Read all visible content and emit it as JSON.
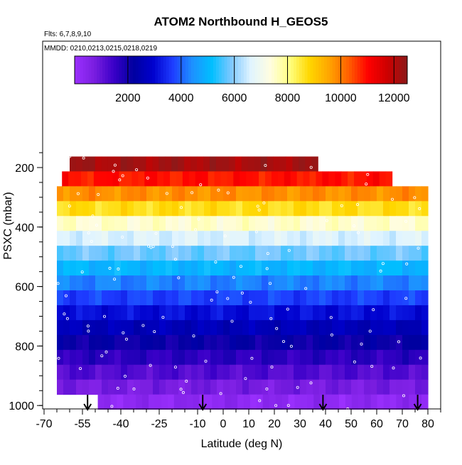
{
  "chart_data": {
    "type": "heatmap",
    "title": "ATOM2 Northbound H_GEOS5",
    "subtitle_flights": "Flts: 6,7,8,9,10",
    "subtitle_dates": "MMDD: 0210,0213,0215,0218,0219",
    "xlabel": "Latitude (deg N)",
    "ylabel": "PSXC (mbar)",
    "xlim": [
      -65,
      82
    ],
    "ylim": [
      1000,
      100
    ],
    "x_ticks": [
      -70,
      -55,
      -40,
      -25,
      -10,
      0,
      10,
      20,
      30,
      40,
      50,
      60,
      70,
      80
    ],
    "y_ticks": [
      200,
      400,
      600,
      800,
      1000
    ],
    "colorbar": {
      "range": [
        0,
        12500
      ],
      "ticks": [
        2000,
        4000,
        6000,
        8000,
        10000,
        12000
      ],
      "colors": [
        "#9b30ff",
        "#7a1ee0",
        "#3a00c8",
        "#0000a0",
        "#0000cd",
        "#1e3cff",
        "#1e90ff",
        "#00bfff",
        "#7ec8ff",
        "#e0f4ff",
        "#fffde0",
        "#ffff80",
        "#ffd700",
        "#ffa500",
        "#ff6000",
        "#ff0000",
        "#cc0000",
        "#8b1a1a"
      ]
    },
    "pressure_levels": [
      {
        "pressure": 188,
        "height": 12200,
        "lat_range": [
          -60,
          37
        ]
      },
      {
        "pressure": 238,
        "height": 10900,
        "lat_range": [
          -63,
          66
        ]
      },
      {
        "pressure": 288,
        "height": 9800,
        "lat_range": [
          -65,
          80
        ]
      },
      {
        "pressure": 338,
        "height": 8700,
        "lat_range": [
          -65,
          80
        ]
      },
      {
        "pressure": 388,
        "height": 7500,
        "lat_range": [
          -65,
          80
        ]
      },
      {
        "pressure": 438,
        "height": 6600,
        "lat_range": [
          -65,
          80
        ]
      },
      {
        "pressure": 488,
        "height": 5800,
        "lat_range": [
          -65,
          80
        ]
      },
      {
        "pressure": 538,
        "height": 5000,
        "lat_range": [
          -65,
          80
        ]
      },
      {
        "pressure": 588,
        "height": 4300,
        "lat_range": [
          -65,
          80
        ]
      },
      {
        "pressure": 638,
        "height": 3700,
        "lat_range": [
          -65,
          80
        ]
      },
      {
        "pressure": 688,
        "height": 3100,
        "lat_range": [
          -65,
          80
        ]
      },
      {
        "pressure": 738,
        "height": 2600,
        "lat_range": [
          -65,
          80
        ]
      },
      {
        "pressure": 788,
        "height": 2100,
        "lat_range": [
          -65,
          80
        ]
      },
      {
        "pressure": 838,
        "height": 1650,
        "lat_range": [
          -65,
          80
        ]
      },
      {
        "pressure": 888,
        "height": 1200,
        "lat_range": [
          -65,
          80
        ]
      },
      {
        "pressure": 938,
        "height": 750,
        "lat_range": [
          -65,
          80
        ]
      },
      {
        "pressure": 988,
        "height": 300,
        "lat_range": [
          -49,
          80
        ]
      }
    ],
    "profile_arrows_lat": [
      -53,
      -8,
      39,
      76
    ]
  }
}
